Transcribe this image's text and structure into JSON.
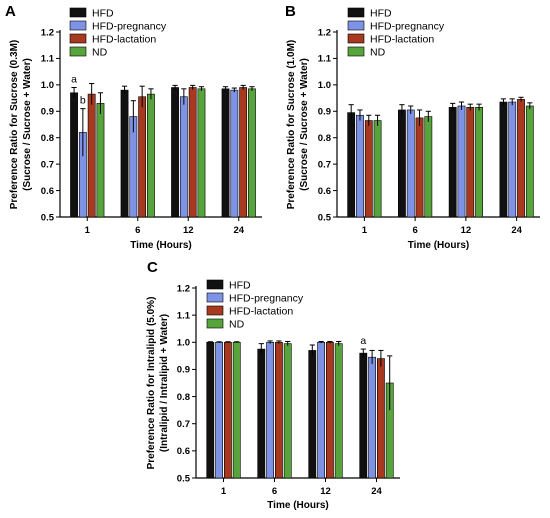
{
  "colors": {
    "HFD": "#111111",
    "HFD-pregnancy": "#7f93e6",
    "HFD-lactation": "#a8391f",
    "ND": "#57a33c"
  },
  "chart_data": [
    {
      "panel": "A",
      "type": "bar",
      "categories": [
        "1",
        "6",
        "12",
        "24"
      ],
      "xlabel": "Time (Hours)",
      "ylabel_lines": [
        "Preference Ratio for Sucrose (0.3M)",
        "(Sucrose / Sucrose + Water)"
      ],
      "ylim": [
        0.5,
        1.2
      ],
      "yticks": [
        "0.5",
        "0.6",
        "0.7",
        "0.8",
        "0.9",
        "1.0",
        "1.1",
        "1.2"
      ],
      "legend": [
        "HFD",
        "HFD-pregnancy",
        "HFD-lactation",
        "ND"
      ],
      "legend_position": "top-left",
      "series": [
        {
          "name": "HFD",
          "values": [
            0.97,
            0.98,
            0.99,
            0.985
          ],
          "errors": [
            0.02,
            0.015,
            0.008,
            0.008
          ]
        },
        {
          "name": "HFD-pregnancy",
          "values": [
            0.82,
            0.88,
            0.955,
            0.98
          ],
          "errors": [
            0.09,
            0.06,
            0.03,
            0.008
          ]
        },
        {
          "name": "HFD-lactation",
          "values": [
            0.965,
            0.955,
            0.99,
            0.99
          ],
          "errors": [
            0.04,
            0.04,
            0.008,
            0.008
          ]
        },
        {
          "name": "ND",
          "values": [
            0.93,
            0.965,
            0.985,
            0.985
          ],
          "errors": [
            0.04,
            0.02,
            0.008,
            0.008
          ]
        }
      ],
      "annotations": [
        {
          "text": "a",
          "category": 0,
          "series": 0
        },
        {
          "text": "b",
          "category": 0,
          "series": 1
        }
      ]
    },
    {
      "panel": "B",
      "type": "bar",
      "categories": [
        "1",
        "6",
        "12",
        "24"
      ],
      "xlabel": "Time (Hours)",
      "ylabel_lines": [
        "Preference Ratio for Sucrose (1.0M)",
        "(Sucrose / Sucrose + Water)"
      ],
      "ylim": [
        0.5,
        1.2
      ],
      "yticks": [
        "0.5",
        "0.6",
        "0.7",
        "0.8",
        "0.9",
        "1.0",
        "1.1",
        "1.2"
      ],
      "legend": [
        "HFD",
        "HFD-pregnancy",
        "HFD-lactation",
        "ND"
      ],
      "legend_position": "top-left",
      "series": [
        {
          "name": "HFD",
          "values": [
            0.895,
            0.905,
            0.915,
            0.935
          ],
          "errors": [
            0.03,
            0.02,
            0.015,
            0.012
          ]
        },
        {
          "name": "HFD-pregnancy",
          "values": [
            0.885,
            0.905,
            0.92,
            0.935
          ],
          "errors": [
            0.02,
            0.015,
            0.015,
            0.012
          ]
        },
        {
          "name": "HFD-lactation",
          "values": [
            0.865,
            0.875,
            0.915,
            0.945
          ],
          "errors": [
            0.02,
            0.03,
            0.012,
            0.008
          ]
        },
        {
          "name": "ND",
          "values": [
            0.865,
            0.88,
            0.915,
            0.92
          ],
          "errors": [
            0.02,
            0.02,
            0.012,
            0.012
          ]
        }
      ],
      "annotations": []
    },
    {
      "panel": "C",
      "type": "bar",
      "categories": [
        "1",
        "6",
        "12",
        "24"
      ],
      "xlabel": "Time (Hours)",
      "ylabel_lines": [
        "Preference Ratio for Intralipid (5.0%)",
        "(Intralipid / Intralipid + Water)"
      ],
      "ylim": [
        0.5,
        1.2
      ],
      "yticks": [
        "0.5",
        "0.6",
        "0.7",
        "0.8",
        "0.9",
        "1.0",
        "1.1",
        "1.2"
      ],
      "legend": [
        "HFD",
        "HFD-pregnancy",
        "HFD-lactation",
        "ND"
      ],
      "legend_position": "top-left",
      "series": [
        {
          "name": "HFD",
          "values": [
            1.0,
            0.975,
            0.97,
            0.96
          ],
          "errors": [
            0.002,
            0.02,
            0.02,
            0.015
          ]
        },
        {
          "name": "HFD-pregnancy",
          "values": [
            1.0,
            1.0,
            1.0,
            0.945
          ],
          "errors": [
            0.002,
            0.005,
            0.003,
            0.025
          ]
        },
        {
          "name": "HFD-lactation",
          "values": [
            1.0,
            1.0,
            1.0,
            0.94
          ],
          "errors": [
            0.002,
            0.005,
            0.003,
            0.03
          ]
        },
        {
          "name": "ND",
          "values": [
            1.0,
            0.995,
            0.995,
            0.85
          ],
          "errors": [
            0.002,
            0.008,
            0.008,
            0.1
          ]
        }
      ],
      "annotations": [
        {
          "text": "a",
          "category": 3,
          "series": 0
        }
      ]
    }
  ]
}
